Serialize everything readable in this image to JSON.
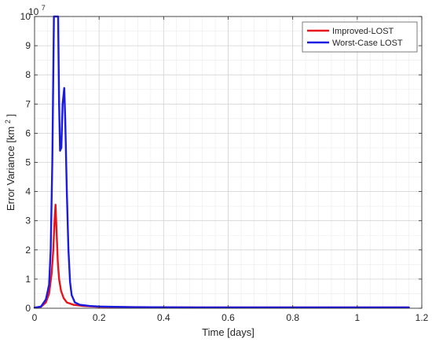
{
  "chart_data": {
    "type": "line",
    "title": "",
    "xlabel": "Time [days]",
    "ylabel_main": "Error Variance [km",
    "ylabel_sup": "2",
    "ylabel_tail": "]",
    "exponent_base": "10",
    "exponent_power": "7",
    "xlim": [
      0,
      1.2
    ],
    "ylim": [
      0,
      10
    ],
    "x_ticks": [
      "0",
      "0.2",
      "0.4",
      "0.6",
      "0.8",
      "1",
      "1.2"
    ],
    "y_ticks": [
      "0",
      "1",
      "2",
      "3",
      "4",
      "5",
      "6",
      "7",
      "8",
      "9",
      "10"
    ],
    "grid": true,
    "legend_position": "top-right",
    "series": [
      {
        "name": "Improved-LOST",
        "color": "#e8141b",
        "points": [
          [
            0.0,
            0.02
          ],
          [
            0.02,
            0.05
          ],
          [
            0.035,
            0.2
          ],
          [
            0.045,
            0.5
          ],
          [
            0.053,
            1.2
          ],
          [
            0.058,
            2.0
          ],
          [
            0.062,
            3.0
          ],
          [
            0.065,
            3.55
          ],
          [
            0.068,
            2.7
          ],
          [
            0.072,
            1.6
          ],
          [
            0.076,
            1.0
          ],
          [
            0.082,
            0.6
          ],
          [
            0.09,
            0.35
          ],
          [
            0.1,
            0.2
          ],
          [
            0.12,
            0.12
          ],
          [
            0.15,
            0.08
          ],
          [
            0.2,
            0.05
          ],
          [
            0.3,
            0.04
          ],
          [
            0.5,
            0.03
          ],
          [
            0.8,
            0.03
          ],
          [
            1.0,
            0.03
          ],
          [
            1.16,
            0.03
          ]
        ]
      },
      {
        "name": "Worst-Case LOST",
        "color": "#1a1ae0",
        "points": [
          [
            0.0,
            0.02
          ],
          [
            0.02,
            0.06
          ],
          [
            0.035,
            0.3
          ],
          [
            0.045,
            0.8
          ],
          [
            0.05,
            2.0
          ],
          [
            0.055,
            5.0
          ],
          [
            0.058,
            8.0
          ],
          [
            0.06,
            10.0
          ],
          [
            0.065,
            10.0
          ],
          [
            0.07,
            10.0
          ],
          [
            0.073,
            10.0
          ],
          [
            0.076,
            7.0
          ],
          [
            0.079,
            5.4
          ],
          [
            0.083,
            5.5
          ],
          [
            0.087,
            7.0
          ],
          [
            0.092,
            7.55
          ],
          [
            0.095,
            6.5
          ],
          [
            0.1,
            4.0
          ],
          [
            0.105,
            2.0
          ],
          [
            0.11,
            0.9
          ],
          [
            0.115,
            0.45
          ],
          [
            0.125,
            0.2
          ],
          [
            0.14,
            0.12
          ],
          [
            0.17,
            0.08
          ],
          [
            0.2,
            0.06
          ],
          [
            0.3,
            0.04
          ],
          [
            0.5,
            0.03
          ],
          [
            0.8,
            0.03
          ],
          [
            1.0,
            0.03
          ],
          [
            1.16,
            0.03
          ]
        ]
      }
    ]
  }
}
